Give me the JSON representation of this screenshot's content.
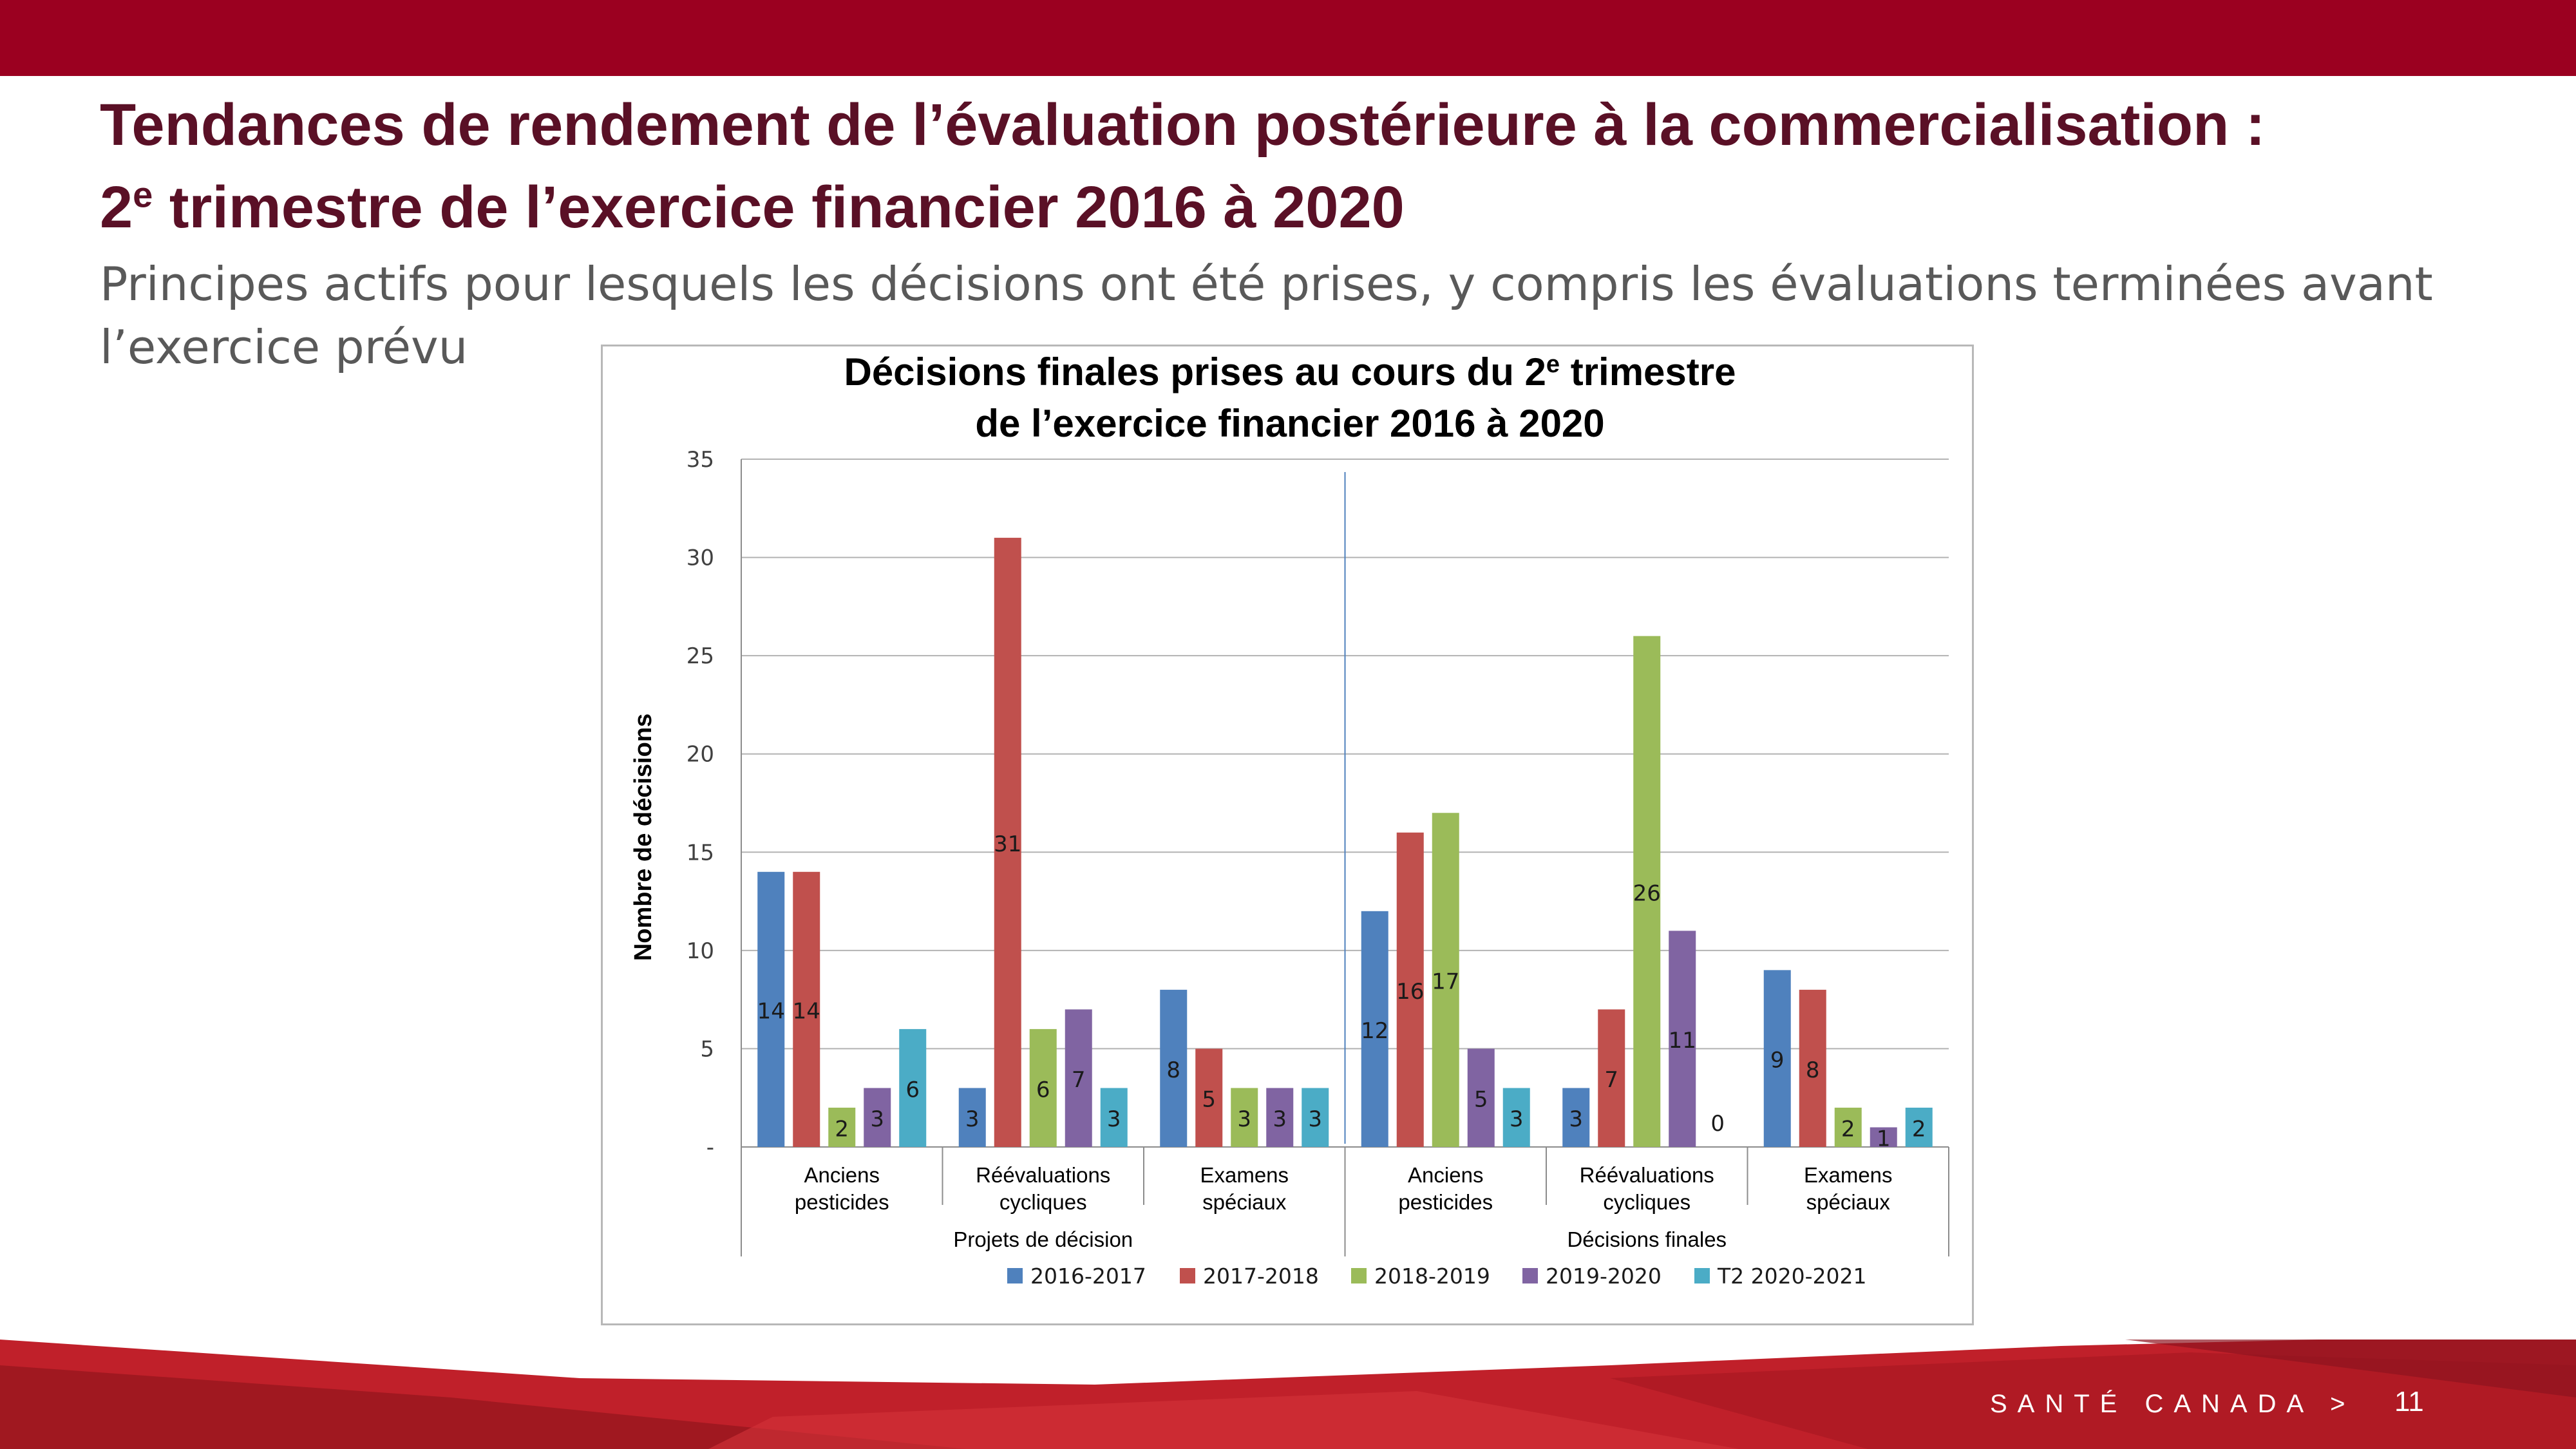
{
  "slide": {
    "title_line1": "Tendances de rendement de l’évaluation postérieure à la commercialisation :",
    "title_line2_prefix": "2",
    "title_line2_sup": "e",
    "title_line2_rest": " trimestre de l’exercice financier 2016 à 2020",
    "subtitle": "Principes actifs pour lesquels les décisions ont été prises, y compris les évaluations terminées avant l’exercice prévu",
    "brand": "SANTÉ CANADA >",
    "page_number": "11"
  },
  "colors": {
    "top_band": "#9b0020",
    "title": "#5a1026",
    "footer_red": "#c0202a"
  },
  "chart_data": {
    "type": "bar",
    "title_line1_prefix": "Décisions finales prises au cours du 2",
    "title_line1_sup": "e",
    "title_line1_suffix": " trimestre",
    "title_line2": "de l’exercice financier 2016 à 2020",
    "ylabel": "Nombre de décisions",
    "ylim": [
      0,
      35
    ],
    "yticks": [
      {
        "value": 0,
        "label": "-"
      },
      {
        "value": 5,
        "label": "5"
      },
      {
        "value": 10,
        "label": "10"
      },
      {
        "value": 15,
        "label": "15"
      },
      {
        "value": 20,
        "label": "20"
      },
      {
        "value": 25,
        "label": "25"
      },
      {
        "value": 30,
        "label": "30"
      },
      {
        "value": 35,
        "label": "35"
      }
    ],
    "groups": [
      {
        "name": "Projets de décision",
        "categories": [
          [
            "Anciens",
            "pesticides"
          ],
          [
            "Réévaluations",
            "cycliques"
          ],
          [
            "Examens",
            "spéciaux"
          ]
        ]
      },
      {
        "name": "Décisions finales",
        "categories": [
          [
            "Anciens",
            "pesticides"
          ],
          [
            "Réévaluations",
            "cycliques"
          ],
          [
            "Examens",
            "spéciaux"
          ]
        ]
      }
    ],
    "series": [
      {
        "name": "2016-2017",
        "color": "#4f81bd",
        "values": [
          14,
          3,
          8,
          12,
          3,
          9
        ]
      },
      {
        "name": "2017-2018",
        "color": "#c0504d",
        "values": [
          14,
          31,
          5,
          16,
          7,
          8
        ]
      },
      {
        "name": "2018-2019",
        "color": "#9bbb59",
        "values": [
          2,
          6,
          3,
          17,
          26,
          2
        ]
      },
      {
        "name": "2019-2020",
        "color": "#8064a2",
        "values": [
          3,
          7,
          3,
          5,
          11,
          1
        ]
      },
      {
        "name": "T2 2020-2021",
        "color": "#4bacc6",
        "values": [
          6,
          3,
          3,
          3,
          0,
          2
        ]
      }
    ],
    "legend_position": "bottom",
    "grid": true
  }
}
